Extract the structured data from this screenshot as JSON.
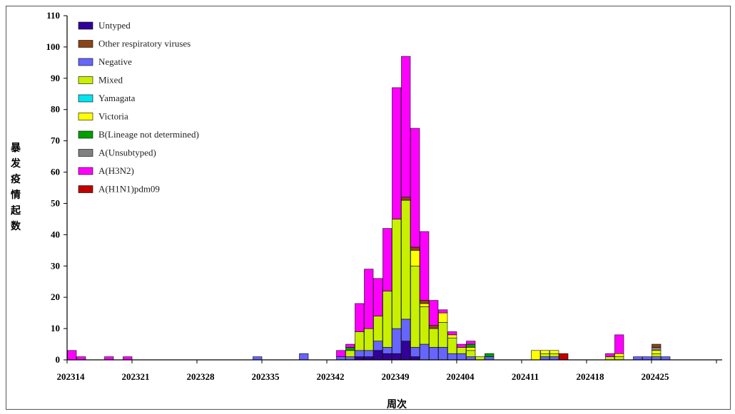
{
  "chart_data": {
    "type": "bar",
    "stacked": true,
    "xlabel": "周次",
    "ylabel": "暴发疫情起数",
    "ylim": [
      0,
      110
    ],
    "yticks": [
      0,
      10,
      20,
      30,
      40,
      50,
      60,
      70,
      80,
      90,
      100,
      110
    ],
    "x_tick_labels": [
      "202314",
      "202321",
      "202328",
      "202335",
      "202342",
      "202349",
      "202404",
      "202411",
      "202418",
      "202425"
    ],
    "legend_position": "top-left",
    "grid": false,
    "series": [
      {
        "name": "A(H1N1)pdm09",
        "color": "#c00000",
        "points": [
          [
            13,
            0
          ],
          [
            14,
            0
          ],
          [
            15,
            0
          ],
          [
            16,
            0
          ],
          [
            17,
            0
          ],
          [
            18,
            0
          ],
          [
            19,
            0
          ],
          [
            20,
            0
          ],
          [
            21,
            0
          ],
          [
            22,
            0
          ],
          [
            23,
            0
          ],
          [
            24,
            0
          ],
          [
            25,
            0
          ],
          [
            26,
            0
          ],
          [
            27,
            0
          ],
          [
            28,
            0
          ],
          [
            29,
            0
          ],
          [
            30,
            0
          ],
          [
            31,
            0
          ],
          [
            32,
            0
          ],
          [
            33,
            0
          ],
          [
            34,
            0
          ],
          [
            35,
            0
          ],
          [
            36,
            0
          ],
          [
            37,
            0
          ],
          [
            38,
            0
          ],
          [
            39,
            0
          ],
          [
            40,
            0
          ],
          [
            41,
            0
          ],
          [
            42,
            0
          ],
          [
            43,
            0
          ],
          [
            44,
            0
          ],
          [
            45,
            0
          ],
          [
            46,
            0
          ],
          [
            47,
            0
          ],
          [
            48,
            0
          ],
          [
            49,
            0
          ],
          [
            50,
            0
          ],
          [
            51,
            0
          ],
          [
            52,
            0
          ],
          [
            53,
            0
          ],
          [
            54,
            0
          ],
          [
            55,
            0
          ],
          [
            56,
            0
          ],
          [
            57,
            0
          ],
          [
            58,
            0
          ],
          [
            59,
            0
          ],
          [
            60,
            0
          ],
          [
            61,
            0
          ],
          [
            62,
            0
          ],
          [
            63,
            0
          ],
          [
            64,
            0
          ],
          [
            65,
            0
          ],
          [
            66,
            2
          ],
          [
            67,
            0
          ],
          [
            68,
            0
          ],
          [
            69,
            0
          ],
          [
            70,
            0
          ],
          [
            71,
            0
          ],
          [
            72,
            0
          ],
          [
            73,
            0
          ],
          [
            74,
            0
          ],
          [
            75,
            0
          ],
          [
            76,
            0
          ],
          [
            77,
            0
          ]
        ]
      },
      {
        "name": "A(H3N2)",
        "color": "#ff00ff",
        "points": [
          [
            13,
            3
          ],
          [
            14,
            1
          ],
          [
            17,
            1
          ],
          [
            19,
            1
          ],
          [
            42,
            2
          ],
          [
            43,
            1
          ],
          [
            44,
            9
          ],
          [
            45,
            19
          ],
          [
            46,
            12
          ],
          [
            47,
            20
          ],
          [
            48,
            42
          ],
          [
            49,
            45
          ],
          [
            50,
            38
          ],
          [
            51,
            22
          ],
          [
            52,
            8
          ],
          [
            53,
            1
          ],
          [
            54,
            1
          ],
          [
            55,
            1
          ],
          [
            56,
            1
          ],
          [
            57,
            0
          ],
          [
            71,
            1
          ],
          [
            72,
            6
          ]
        ]
      },
      {
        "name": "A(Unsubtyped)",
        "color": "#808080",
        "points": [
          [
            76,
            1
          ]
        ]
      },
      {
        "name": "B(Lineage not determined)",
        "color": "#00a000",
        "points": [
          [
            43,
            1
          ],
          [
            56,
            1
          ],
          [
            58,
            1
          ]
        ]
      },
      {
        "name": "Victoria",
        "color": "#ffff00",
        "points": [
          [
            48,
            0
          ],
          [
            49,
            0
          ],
          [
            50,
            5
          ],
          [
            51,
            1
          ],
          [
            52,
            0
          ],
          [
            53,
            3
          ],
          [
            54,
            1
          ],
          [
            56,
            1
          ],
          [
            63,
            3
          ],
          [
            64,
            1
          ],
          [
            65,
            1
          ],
          [
            72,
            1
          ],
          [
            76,
            1
          ]
        ]
      },
      {
        "name": "Yamagata",
        "color": "#00e5ee",
        "points": []
      },
      {
        "name": "Mixed",
        "color": "#c8f000",
        "points": [
          [
            43,
            2
          ],
          [
            44,
            6
          ],
          [
            45,
            7
          ],
          [
            46,
            8
          ],
          [
            47,
            18
          ],
          [
            48,
            35
          ],
          [
            49,
            38
          ],
          [
            50,
            26
          ],
          [
            51,
            12
          ],
          [
            52,
            6
          ],
          [
            53,
            8
          ],
          [
            54,
            5
          ],
          [
            55,
            2
          ],
          [
            56,
            2
          ],
          [
            57,
            1
          ],
          [
            64,
            1
          ],
          [
            65,
            1
          ],
          [
            71,
            1
          ],
          [
            72,
            1
          ],
          [
            76,
            1
          ]
        ]
      },
      {
        "name": "Negative",
        "color": "#6666ff",
        "points": [
          [
            33,
            1
          ],
          [
            38,
            2
          ],
          [
            42,
            1
          ],
          [
            43,
            1
          ],
          [
            44,
            2
          ],
          [
            45,
            2
          ],
          [
            46,
            3
          ],
          [
            47,
            2
          ],
          [
            48,
            8
          ],
          [
            49,
            7
          ],
          [
            50,
            3
          ],
          [
            51,
            5
          ],
          [
            52,
            4
          ],
          [
            53,
            4
          ],
          [
            54,
            2
          ],
          [
            55,
            2
          ],
          [
            56,
            1
          ],
          [
            58,
            1
          ],
          [
            64,
            1
          ],
          [
            65,
            1
          ],
          [
            67,
            0
          ],
          [
            72,
            0
          ],
          [
            74,
            1
          ],
          [
            75,
            1
          ],
          [
            76,
            1
          ],
          [
            77,
            1
          ]
        ]
      },
      {
        "name": "Other respiratory viruses",
        "color": "#8b4513",
        "points": [
          [
            42,
            0
          ],
          [
            46,
            0
          ],
          [
            47,
            0
          ],
          [
            48,
            0
          ],
          [
            49,
            1
          ],
          [
            50,
            1
          ],
          [
            51,
            1
          ],
          [
            52,
            1
          ],
          [
            76,
            1
          ]
        ]
      },
      {
        "name": "Untyped",
        "color": "#330099",
        "points": [
          [
            44,
            1
          ],
          [
            45,
            1
          ],
          [
            46,
            3
          ],
          [
            47,
            2
          ],
          [
            48,
            2
          ],
          [
            49,
            6
          ],
          [
            50,
            1
          ]
        ]
      }
    ],
    "legend_order": [
      "Untyped",
      "Other respiratory viruses",
      "Negative",
      "Mixed",
      "Yamagata",
      "Victoria",
      "B(Lineage not determined)",
      "A(Unsubtyped)",
      "A(H3N2)",
      "A(H1N1)pdm09"
    ]
  },
  "colors": {
    "Untyped": "#330099",
    "Other respiratory viruses": "#8b4513",
    "Negative": "#6666ff",
    "Mixed": "#c8f000",
    "Yamagata": "#00e5ee",
    "Victoria": "#ffff00",
    "B(Lineage not determined)": "#00a000",
    "A(Unsubtyped)": "#808080",
    "A(H3N2)": "#ff00ff",
    "A(H1N1)pdm09": "#c00000"
  }
}
